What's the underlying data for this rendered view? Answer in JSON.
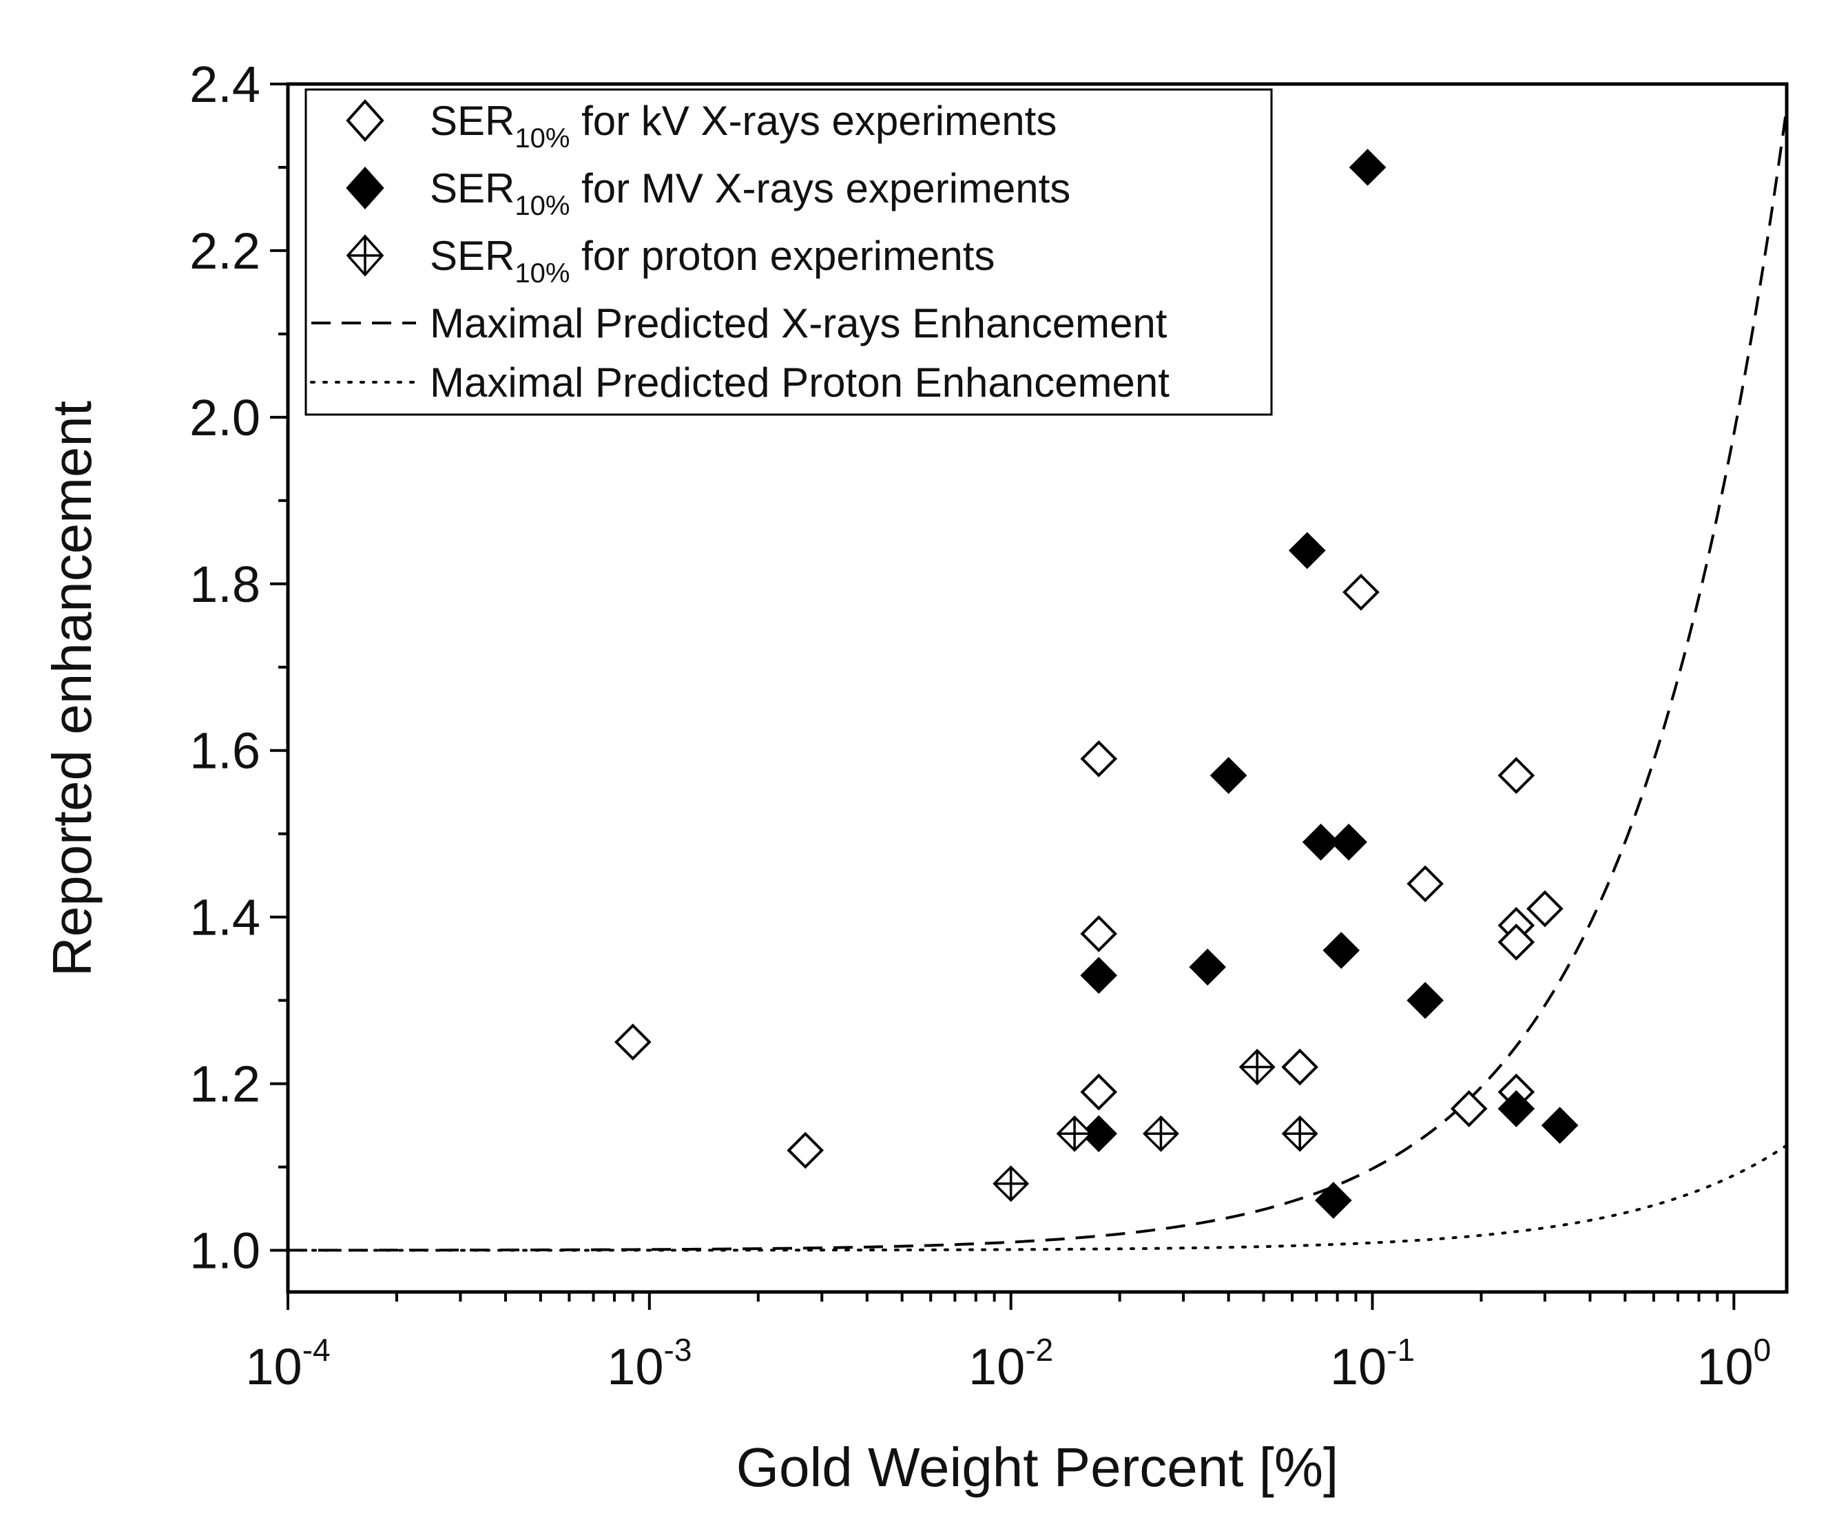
{
  "chart_data": {
    "type": "scatter",
    "title": "",
    "xlabel": "Gold Weight Percent [%]",
    "ylabel": "Reported enhancement",
    "xscale": "log",
    "xlim": [
      0.0001,
      1.4
    ],
    "ylim": [
      0.95,
      2.4
    ],
    "x_ticks": [
      {
        "base": "10",
        "exp": "-4",
        "value": 0.0001
      },
      {
        "base": "10",
        "exp": "-3",
        "value": 0.001
      },
      {
        "base": "10",
        "exp": "-2",
        "value": 0.01
      },
      {
        "base": "10",
        "exp": "-1",
        "value": 0.1
      },
      {
        "base": "10",
        "exp": "0",
        "value": 1
      }
    ],
    "y_ticks": [
      {
        "label": "1.0",
        "value": 1.0
      },
      {
        "label": "1.2",
        "value": 1.2
      },
      {
        "label": "1.4",
        "value": 1.4
      },
      {
        "label": "1.6",
        "value": 1.6
      },
      {
        "label": "1.8",
        "value": 1.8
      },
      {
        "label": "2.0",
        "value": 2.0
      },
      {
        "label": "2.2",
        "value": 2.2
      },
      {
        "label": "2.4",
        "value": 2.4
      }
    ],
    "legend_position": "top-left",
    "series": [
      {
        "name": "SER10% for kV X-rays experiments",
        "legend_main": "SER",
        "legend_sub": "10%",
        "legend_rest": " for kV X-rays experiments",
        "marker": "open-diamond",
        "points": [
          {
            "x": 0.0009,
            "y": 1.25
          },
          {
            "x": 0.0027,
            "y": 1.12
          },
          {
            "x": 0.0175,
            "y": 1.59
          },
          {
            "x": 0.0175,
            "y": 1.38
          },
          {
            "x": 0.0175,
            "y": 1.19
          },
          {
            "x": 0.063,
            "y": 1.22
          },
          {
            "x": 0.093,
            "y": 1.79
          },
          {
            "x": 0.14,
            "y": 1.44
          },
          {
            "x": 0.185,
            "y": 1.17
          },
          {
            "x": 0.25,
            "y": 1.57
          },
          {
            "x": 0.25,
            "y": 1.39
          },
          {
            "x": 0.25,
            "y": 1.37
          },
          {
            "x": 0.25,
            "y": 1.19
          },
          {
            "x": 0.3,
            "y": 1.41
          }
        ]
      },
      {
        "name": "SER10% for MV X-rays experiments",
        "legend_main": "SER",
        "legend_sub": "10%",
        "legend_rest": " for MV X-rays experiments",
        "marker": "filled-diamond",
        "points": [
          {
            "x": 0.0175,
            "y": 1.33
          },
          {
            "x": 0.0175,
            "y": 1.14
          },
          {
            "x": 0.035,
            "y": 1.34
          },
          {
            "x": 0.04,
            "y": 1.57
          },
          {
            "x": 0.066,
            "y": 1.84
          },
          {
            "x": 0.072,
            "y": 1.49
          },
          {
            "x": 0.078,
            "y": 1.06
          },
          {
            "x": 0.082,
            "y": 1.36
          },
          {
            "x": 0.086,
            "y": 1.49
          },
          {
            "x": 0.097,
            "y": 2.3
          },
          {
            "x": 0.14,
            "y": 1.3
          },
          {
            "x": 0.25,
            "y": 1.17
          },
          {
            "x": 0.33,
            "y": 1.15
          }
        ]
      },
      {
        "name": "SER10% for proton experiments",
        "legend_main": "SER",
        "legend_sub": "10%",
        "legend_rest": " for proton experiments",
        "marker": "crossed-diamond",
        "points": [
          {
            "x": 0.01,
            "y": 1.08
          },
          {
            "x": 0.015,
            "y": 1.14
          },
          {
            "x": 0.026,
            "y": 1.14
          },
          {
            "x": 0.048,
            "y": 1.22
          },
          {
            "x": 0.063,
            "y": 1.14
          }
        ]
      }
    ],
    "curves": [
      {
        "name": "Maximal Predicted X-rays Enhancement",
        "style": "dashed",
        "formula": "1 + k*x",
        "k": 0.98,
        "sample_points": [
          {
            "x": 0.001,
            "y": 1.001
          },
          {
            "x": 0.01,
            "y": 1.01
          },
          {
            "x": 0.1,
            "y": 1.1
          },
          {
            "x": 0.5,
            "y": 1.49
          },
          {
            "x": 1.0,
            "y": 1.98
          },
          {
            "x": 1.4,
            "y": 2.37
          }
        ]
      },
      {
        "name": "Maximal Predicted Proton Enhancement",
        "style": "dotted",
        "formula": "1 + k*x",
        "k": 0.09,
        "sample_points": [
          {
            "x": 0.01,
            "y": 1.001
          },
          {
            "x": 0.1,
            "y": 1.009
          },
          {
            "x": 1.0,
            "y": 1.09
          },
          {
            "x": 1.4,
            "y": 1.126
          }
        ]
      }
    ]
  }
}
